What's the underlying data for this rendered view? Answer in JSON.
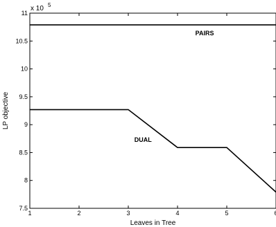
{
  "chart_data": {
    "type": "line",
    "xlabel": "Leaves in Tree",
    "ylabel": "LP objective",
    "exponent_label": "x 10",
    "exponent_power": "5",
    "xlim": [
      1,
      6
    ],
    "ylim": [
      7.5,
      11
    ],
    "xticks": [
      "1",
      "2",
      "3",
      "4",
      "5",
      "6"
    ],
    "yticks": [
      "7.5",
      "8",
      "8.5",
      "9",
      "9.5",
      "10",
      "10.5",
      "11"
    ],
    "grid": false,
    "series": [
      {
        "name": "PAIRS",
        "x": [
          1,
          6
        ],
        "y": [
          10.79,
          10.79
        ]
      },
      {
        "name": "DUAL",
        "x": [
          1,
          3,
          4,
          5,
          6
        ],
        "y": [
          9.27,
          9.27,
          8.59,
          8.59,
          7.79
        ]
      }
    ],
    "annotations": [
      {
        "text": "PAIRS",
        "x": 4.55,
        "y": 10.6
      },
      {
        "text": "DUAL",
        "x": 3.3,
        "y": 8.69
      }
    ]
  }
}
